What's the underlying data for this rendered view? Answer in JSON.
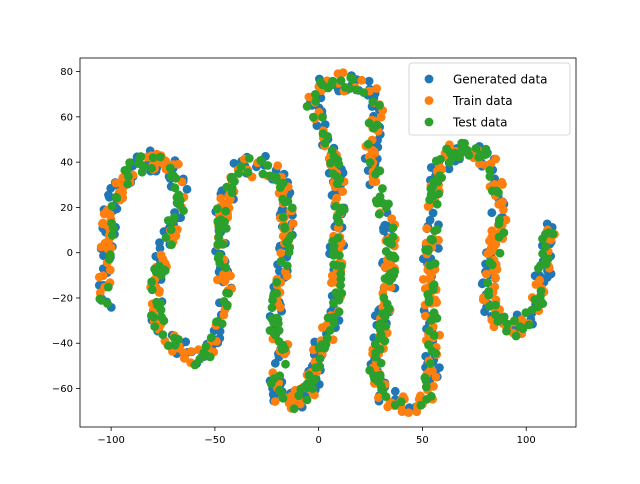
{
  "chart_data": {
    "type": "scatter",
    "title": "",
    "xlabel": "",
    "ylabel": "",
    "xlim": [
      -115,
      124
    ],
    "ylim": [
      -77,
      86
    ],
    "xticks": [
      -100,
      -50,
      0,
      50,
      100
    ],
    "yticks": [
      -60,
      -40,
      -20,
      0,
      20,
      40,
      60,
      80
    ],
    "grid": false,
    "legend_position": "top-right",
    "curve_path": [
      [
        -103,
        -25
      ],
      [
        -102,
        -5
      ],
      [
        -102,
        5
      ],
      [
        -101,
        15
      ],
      [
        -99,
        22
      ],
      [
        -95,
        30
      ],
      [
        -90,
        36
      ],
      [
        -85,
        39
      ],
      [
        -80,
        41
      ],
      [
        -75,
        40
      ],
      [
        -70,
        37
      ],
      [
        -67,
        30
      ],
      [
        -67,
        22
      ],
      [
        -70,
        12
      ],
      [
        -74,
        2
      ],
      [
        -77,
        -8
      ],
      [
        -79,
        -18
      ],
      [
        -78,
        -28
      ],
      [
        -75,
        -36
      ],
      [
        -70,
        -40
      ],
      [
        -64,
        -44
      ],
      [
        -58,
        -47
      ],
      [
        -53,
        -45
      ],
      [
        -49,
        -38
      ],
      [
        -46,
        -28
      ],
      [
        -45,
        -18
      ],
      [
        -46,
        -5
      ],
      [
        -47,
        8
      ],
      [
        -46,
        20
      ],
      [
        -43,
        30
      ],
      [
        -38,
        36
      ],
      [
        -33,
        38
      ],
      [
        -27,
        38
      ],
      [
        -22,
        36
      ],
      [
        -18,
        32
      ],
      [
        -16,
        24
      ],
      [
        -15,
        14
      ],
      [
        -16,
        3
      ],
      [
        -18,
        -8
      ],
      [
        -20,
        -20
      ],
      [
        -22,
        -30
      ],
      [
        -20,
        -38
      ],
      [
        -16,
        -45
      ],
      [
        -18,
        -52
      ],
      [
        -22,
        -58
      ],
      [
        -20,
        -64
      ],
      [
        -14,
        -66
      ],
      [
        -8,
        -64
      ],
      [
        -3,
        -58
      ],
      [
        -1,
        -48
      ],
      [
        2,
        -40
      ],
      [
        6,
        -32
      ],
      [
        9,
        -22
      ],
      [
        9,
        -10
      ],
      [
        8,
        2
      ],
      [
        9,
        12
      ],
      [
        10,
        22
      ],
      [
        9,
        32
      ],
      [
        7,
        42
      ],
      [
        3,
        52
      ],
      [
        -1,
        60
      ],
      [
        -3,
        66
      ],
      [
        0,
        72
      ],
      [
        6,
        74
      ],
      [
        13,
        76
      ],
      [
        20,
        75
      ],
      [
        26,
        72
      ],
      [
        28,
        66
      ],
      [
        27,
        58
      ],
      [
        26,
        50
      ],
      [
        26,
        40
      ],
      [
        28,
        30
      ],
      [
        31,
        20
      ],
      [
        34,
        10
      ],
      [
        35,
        0
      ],
      [
        34,
        -10
      ],
      [
        32,
        -20
      ],
      [
        31,
        -30
      ],
      [
        29,
        -40
      ],
      [
        27,
        -50
      ],
      [
        28,
        -58
      ],
      [
        33,
        -63
      ],
      [
        38,
        -67
      ],
      [
        44,
        -68
      ],
      [
        50,
        -66
      ],
      [
        54,
        -62
      ],
      [
        54,
        -54
      ],
      [
        55,
        -44
      ],
      [
        55,
        -34
      ],
      [
        54,
        -24
      ],
      [
        53,
        -14
      ],
      [
        54,
        -4
      ],
      [
        55,
        8
      ],
      [
        55,
        20
      ],
      [
        56,
        30
      ],
      [
        58,
        38
      ],
      [
        63,
        44
      ],
      [
        70,
        46
      ],
      [
        77,
        44
      ],
      [
        82,
        40
      ],
      [
        85,
        32
      ],
      [
        87,
        22
      ],
      [
        87,
        12
      ],
      [
        85,
        2
      ],
      [
        83,
        -8
      ],
      [
        82,
        -18
      ],
      [
        84,
        -26
      ],
      [
        89,
        -32
      ],
      [
        95,
        -33
      ],
      [
        101,
        -28
      ],
      [
        106,
        -20
      ],
      [
        108,
        -10
      ],
      [
        110,
        0
      ],
      [
        111,
        10
      ]
    ],
    "series": [
      {
        "name": "Generated data",
        "color": "#1f77b4",
        "spread": 3.4,
        "point_count": 480,
        "seed": 11
      },
      {
        "name": "Train data",
        "color": "#ff7f0e",
        "spread": 3.0,
        "point_count": 520,
        "seed": 23
      },
      {
        "name": "Test data",
        "color": "#2ca02c",
        "spread": 2.6,
        "point_count": 420,
        "seed": 37
      }
    ]
  }
}
